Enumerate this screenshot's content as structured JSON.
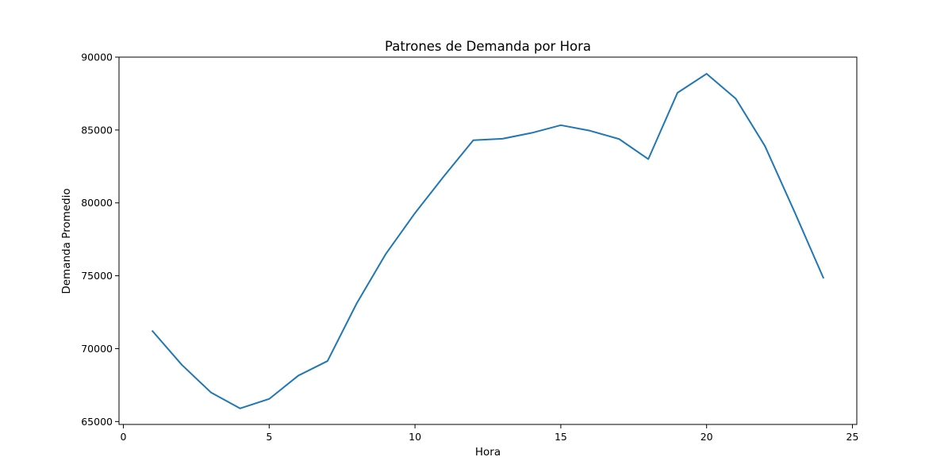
{
  "chart_data": {
    "type": "line",
    "title": "Patrones de Demanda por Hora",
    "xlabel": "Hora",
    "ylabel": "Demanda Promedio",
    "xlim": [
      -0.15,
      25.15
    ],
    "ylim": [
      64800,
      90000
    ],
    "xticks": [
      0,
      5,
      10,
      15,
      20,
      25
    ],
    "yticks": [
      65000,
      70000,
      75000,
      80000,
      85000,
      90000
    ],
    "grid": false,
    "series": [
      {
        "color": "#1f77b4",
        "x": [
          1,
          2,
          3,
          4,
          5,
          6,
          7,
          8,
          9,
          10,
          11,
          12,
          13,
          14,
          15,
          16,
          17,
          18,
          19,
          20,
          21,
          22,
          23,
          24
        ],
        "y": [
          71200,
          68900,
          67000,
          65900,
          66550,
          68150,
          69150,
          73100,
          76500,
          79300,
          81850,
          84300,
          84400,
          84800,
          85330,
          84950,
          84380,
          83000,
          87550,
          88860,
          87150,
          83900,
          79450,
          74870
        ]
      }
    ]
  }
}
